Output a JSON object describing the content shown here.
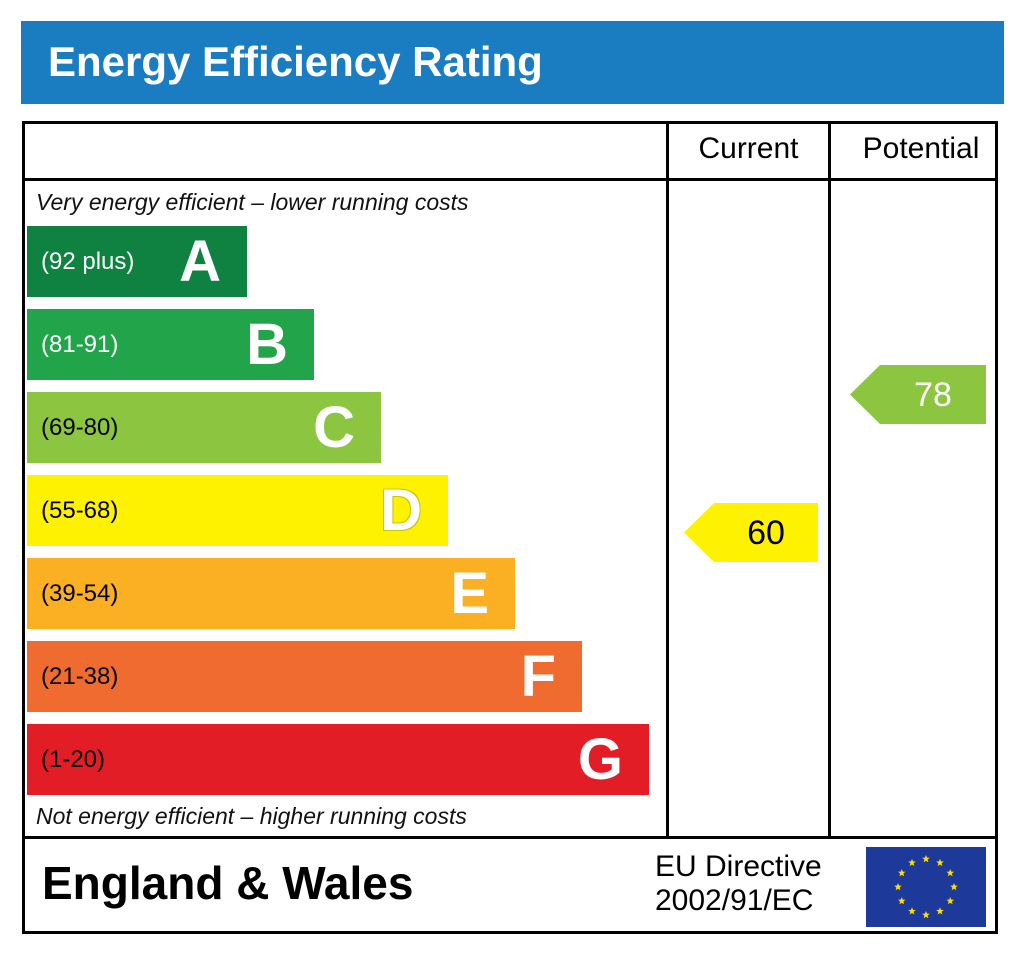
{
  "header": {
    "title": "Energy Efficiency Rating"
  },
  "columns": {
    "current": "Current",
    "potential": "Potential"
  },
  "captions": {
    "top": "Very energy efficient – lower running costs",
    "bottom": "Not energy efficient – higher running costs"
  },
  "chart_data": {
    "type": "bar",
    "title": "Energy Efficiency Rating",
    "categories": [
      "A",
      "B",
      "C",
      "D",
      "E",
      "F",
      "G"
    ],
    "bands": [
      {
        "letter": "A",
        "range": "(92 plus)",
        "color": "#0f8140",
        "text_color": "#ffffff"
      },
      {
        "letter": "B",
        "range": "(81-91)",
        "color": "#22a44a",
        "text_color": "#ffffff"
      },
      {
        "letter": "C",
        "range": "(69-80)",
        "color": "#8cc540",
        "text_color": "#000000"
      },
      {
        "letter": "D",
        "range": "(55-68)",
        "color": "#fff200",
        "text_color": "#000000"
      },
      {
        "letter": "E",
        "range": "(39-54)",
        "color": "#fbb023",
        "text_color": "#000000"
      },
      {
        "letter": "F",
        "range": "(21-38)",
        "color": "#ef6b2f",
        "text_color": "#000000"
      },
      {
        "letter": "G",
        "range": "(1-20)",
        "color": "#e31d26",
        "text_color": "#000000"
      }
    ],
    "current": {
      "value": "60",
      "band": "D",
      "color": "#fff200"
    },
    "potential": {
      "value": "78",
      "band": "C",
      "color": "#8cc540"
    }
  },
  "footer": {
    "region": "England & Wales",
    "directive_line1": "EU Directive",
    "directive_line2": "2002/91/EC"
  },
  "eu_flag": {
    "icon": "eu-flag-icon",
    "background": "#1d3a9a",
    "stars": "#ffdd00"
  }
}
